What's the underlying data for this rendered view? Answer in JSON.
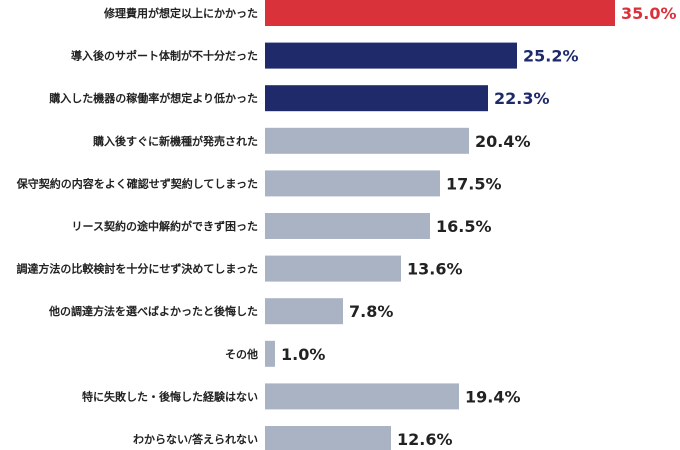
{
  "chart_data": {
    "type": "bar",
    "orientation": "horizontal",
    "categories": [
      "修理費用が想定以上にかかった",
      "導入後のサポート体制が不十分だった",
      "購入した機器の稼働率が想定より低かった",
      "購入後すぐに新機種が発売された",
      "保守契約の内容をよく確認せず契約してしまった",
      "リース契約の途中解約ができず困った",
      "調達方法の比較検討を十分にせず決めてしまった",
      "他の調達方法を選べばよかったと後悔した",
      "その他",
      "特に失敗した・後悔した経験はない",
      "わからない/答えられない"
    ],
    "values": [
      35.0,
      25.2,
      22.3,
      20.4,
      17.5,
      16.5,
      13.6,
      7.8,
      1.0,
      19.4,
      12.6
    ],
    "value_labels": [
      "35.0%",
      "25.2%",
      "22.3%",
      "20.4%",
      "17.5%",
      "16.5%",
      "13.6%",
      "7.8%",
      "1.0%",
      "19.4%",
      "12.6%"
    ],
    "bar_colors": [
      "#d9323a",
      "#1f2a6b",
      "#1f2a6b",
      "#a9b3c4",
      "#a9b3c4",
      "#a9b3c4",
      "#a9b3c4",
      "#a9b3c4",
      "#a9b3c4",
      "#a9b3c4",
      "#a9b3c4"
    ],
    "label_colors": [
      "#d9323a",
      "#1f2a6b",
      "#1f2a6b",
      "#222222",
      "#222222",
      "#222222",
      "#222222",
      "#222222",
      "#222222",
      "#222222",
      "#222222"
    ],
    "xlim": [
      0,
      35
    ],
    "grid": false,
    "legend": "none"
  }
}
